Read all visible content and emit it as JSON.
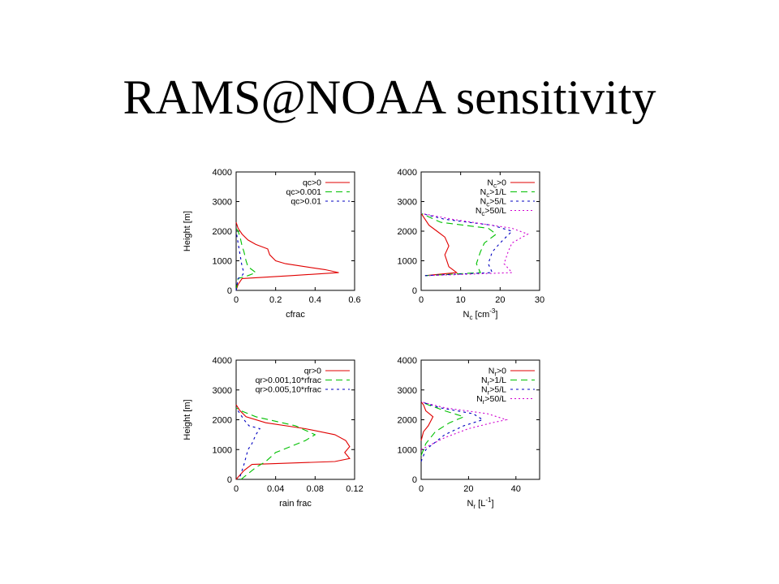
{
  "slide": {
    "title": "RAMS@NOAA sensitivity"
  },
  "colors": {
    "red": "#e00000",
    "green": "#00c000",
    "blue": "#0000c0",
    "magenta": "#d000d0",
    "axis": "#000000"
  },
  "chart_data": [
    {
      "type": "line",
      "xlabel": "cfrac",
      "ylabel": "Height [m]",
      "xlim": [
        0,
        0.6
      ],
      "ylim": [
        0,
        4000
      ],
      "xticks": [
        "0",
        "0.2",
        "0.4",
        "0.6"
      ],
      "yticks": [
        "0",
        "1000",
        "2000",
        "3000",
        "4000"
      ],
      "legend_position": "top-right",
      "grid": false,
      "series": [
        {
          "name": "qc>0",
          "color": "#e00000",
          "dash": "solid",
          "points": [
            [
              0.0,
              0
            ],
            [
              0.01,
              200
            ],
            [
              0.03,
              400
            ],
            [
              0.28,
              500
            ],
            [
              0.52,
              600
            ],
            [
              0.45,
              700
            ],
            [
              0.35,
              800
            ],
            [
              0.25,
              900
            ],
            [
              0.2,
              1000
            ],
            [
              0.17,
              1200
            ],
            [
              0.16,
              1400
            ],
            [
              0.1,
              1550
            ],
            [
              0.06,
              1700
            ],
            [
              0.03,
              1900
            ],
            [
              0.01,
              2100
            ],
            [
              0.0,
              2300
            ]
          ]
        },
        {
          "name": "qc>0.001",
          "color": "#00c000",
          "dash": "8,5",
          "points": [
            [
              0.0,
              0
            ],
            [
              0.01,
              400
            ],
            [
              0.06,
              500
            ],
            [
              0.1,
              600
            ],
            [
              0.06,
              800
            ],
            [
              0.05,
              1000
            ],
            [
              0.04,
              1300
            ],
            [
              0.03,
              1500
            ],
            [
              0.02,
              1800
            ],
            [
              0.01,
              2000
            ],
            [
              0.0,
              2100
            ]
          ]
        },
        {
          "name": "qc>0.01",
          "color": "#0000c0",
          "dash": "3,4",
          "points": [
            [
              0.0,
              0
            ],
            [
              0.01,
              400
            ],
            [
              0.03,
              500
            ],
            [
              0.04,
              600
            ],
            [
              0.03,
              800
            ],
            [
              0.02,
              1200
            ],
            [
              0.01,
              1600
            ],
            [
              0.0,
              2000
            ]
          ]
        }
      ]
    },
    {
      "type": "line",
      "xlabel": "N_c [cm^-3]",
      "ylabel": "",
      "xlim": [
        0,
        30
      ],
      "ylim": [
        0,
        4000
      ],
      "xticks": [
        "0",
        "10",
        "20",
        "30"
      ],
      "yticks": [
        "0",
        "1000",
        "2000",
        "3000",
        "4000"
      ],
      "legend_position": "top-right",
      "grid": false,
      "series": [
        {
          "name": "N_c>0",
          "color": "#e00000",
          "dash": "solid",
          "points": [
            [
              1,
              500
            ],
            [
              9,
              600
            ],
            [
              7,
              800
            ],
            [
              6,
              1200
            ],
            [
              7,
              1500
            ],
            [
              6,
              1800
            ],
            [
              4,
              2000
            ],
            [
              2,
              2200
            ],
            [
              0,
              2600
            ]
          ]
        },
        {
          "name": "N_c>1/L",
          "color": "#00c000",
          "dash": "8,5",
          "points": [
            [
              1,
              500
            ],
            [
              15,
              600
            ],
            [
              14,
              900
            ],
            [
              15,
              1300
            ],
            [
              16,
              1600
            ],
            [
              19,
              1900
            ],
            [
              17,
              2100
            ],
            [
              5,
              2300
            ],
            [
              0,
              2600
            ]
          ]
        },
        {
          "name": "N_c>5/L",
          "color": "#0000c0",
          "dash": "3,4",
          "points": [
            [
              1,
              500
            ],
            [
              18,
              600
            ],
            [
              17,
              900
            ],
            [
              18,
              1300
            ],
            [
              20,
              1600
            ],
            [
              23,
              2000
            ],
            [
              18,
              2200
            ],
            [
              6,
              2400
            ],
            [
              0,
              2600
            ]
          ]
        },
        {
          "name": "N_c>50/L",
          "color": "#d000d0",
          "dash": "2,3",
          "points": [
            [
              2,
              500
            ],
            [
              23,
              600
            ],
            [
              21,
              900
            ],
            [
              22,
              1300
            ],
            [
              23,
              1600
            ],
            [
              27,
              1900
            ],
            [
              23,
              2100
            ],
            [
              8,
              2400
            ],
            [
              0,
              2600
            ]
          ]
        }
      ]
    },
    {
      "type": "line",
      "xlabel": "rain frac",
      "ylabel": "Height [m]",
      "xlim": [
        0,
        0.12
      ],
      "ylim": [
        0,
        4000
      ],
      "xticks": [
        "0",
        "0.04",
        "0.08",
        "0.12"
      ],
      "yticks": [
        "0",
        "1000",
        "2000",
        "3000",
        "4000"
      ],
      "legend_position": "top-right",
      "grid": false,
      "series": [
        {
          "name": "qr>0",
          "color": "#e00000",
          "dash": "solid",
          "points": [
            [
              0.0,
              0
            ],
            [
              0.008,
              300
            ],
            [
              0.016,
              500
            ],
            [
              0.1,
              600
            ],
            [
              0.115,
              700
            ],
            [
              0.11,
              900
            ],
            [
              0.115,
              1100
            ],
            [
              0.111,
              1300
            ],
            [
              0.1,
              1500
            ],
            [
              0.07,
              1700
            ],
            [
              0.03,
              1900
            ],
            [
              0.01,
              2100
            ],
            [
              0.004,
              2300
            ],
            [
              0.0,
              2500
            ]
          ]
        },
        {
          "name": "qr>0.001,10*rfrac",
          "color": "#00c000",
          "dash": "8,5",
          "points": [
            [
              0.005,
              0
            ],
            [
              0.02,
              400
            ],
            [
              0.03,
              600
            ],
            [
              0.04,
              900
            ],
            [
              0.07,
              1300
            ],
            [
              0.08,
              1500
            ],
            [
              0.06,
              1800
            ],
            [
              0.02,
              2100
            ],
            [
              0.005,
              2300
            ],
            [
              0.0,
              2400
            ]
          ]
        },
        {
          "name": "qr>0.005,10*rfrac",
          "color": "#0000c0",
          "dash": "3,4",
          "points": [
            [
              0.004,
              100
            ],
            [
              0.008,
              500
            ],
            [
              0.012,
              1000
            ],
            [
              0.016,
              1200
            ],
            [
              0.02,
              1500
            ],
            [
              0.024,
              1700
            ],
            [
              0.013,
              1800
            ],
            [
              0.008,
              2000
            ],
            [
              0.002,
              2300
            ],
            [
              0.0,
              2400
            ]
          ]
        }
      ]
    },
    {
      "type": "line",
      "xlabel": "N_r [L^-1]",
      "ylabel": "",
      "xlim": [
        0,
        50
      ],
      "ylim": [
        0,
        4000
      ],
      "xticks": [
        "0",
        "20",
        "40"
      ],
      "yticks": [
        "0",
        "1000",
        "2000",
        "3000",
        "4000"
      ],
      "legend_position": "top-right",
      "grid": false,
      "series": [
        {
          "name": "N_r>0",
          "color": "#e00000",
          "dash": "solid",
          "points": [
            [
              0,
              1300
            ],
            [
              1,
              1600
            ],
            [
              3,
              1800
            ],
            [
              5,
              2100
            ],
            [
              2,
              2300
            ],
            [
              1,
              2500
            ],
            [
              0,
              2600
            ]
          ]
        },
        {
          "name": "N_r>1/L",
          "color": "#00c000",
          "dash": "8,5",
          "points": [
            [
              0,
              800
            ],
            [
              2,
              1200
            ],
            [
              6,
              1600
            ],
            [
              12,
              1900
            ],
            [
              18,
              2100
            ],
            [
              10,
              2300
            ],
            [
              3,
              2500
            ],
            [
              0,
              2600
            ]
          ]
        },
        {
          "name": "N_r>5/L",
          "color": "#0000c0",
          "dash": "3,4",
          "points": [
            [
              0,
              600
            ],
            [
              2,
              1000
            ],
            [
              10,
              1500
            ],
            [
              18,
              1800
            ],
            [
              26,
              2000
            ],
            [
              22,
              2200
            ],
            [
              8,
              2400
            ],
            [
              0,
              2600
            ]
          ]
        },
        {
          "name": "N_r>50/L",
          "color": "#d000d0",
          "dash": "2,3",
          "points": [
            [
              0,
              1000
            ],
            [
              10,
              1400
            ],
            [
              20,
              1700
            ],
            [
              30,
              1900
            ],
            [
              36,
              2000
            ],
            [
              28,
              2200
            ],
            [
              10,
              2400
            ],
            [
              0,
              2600
            ]
          ]
        }
      ]
    }
  ]
}
